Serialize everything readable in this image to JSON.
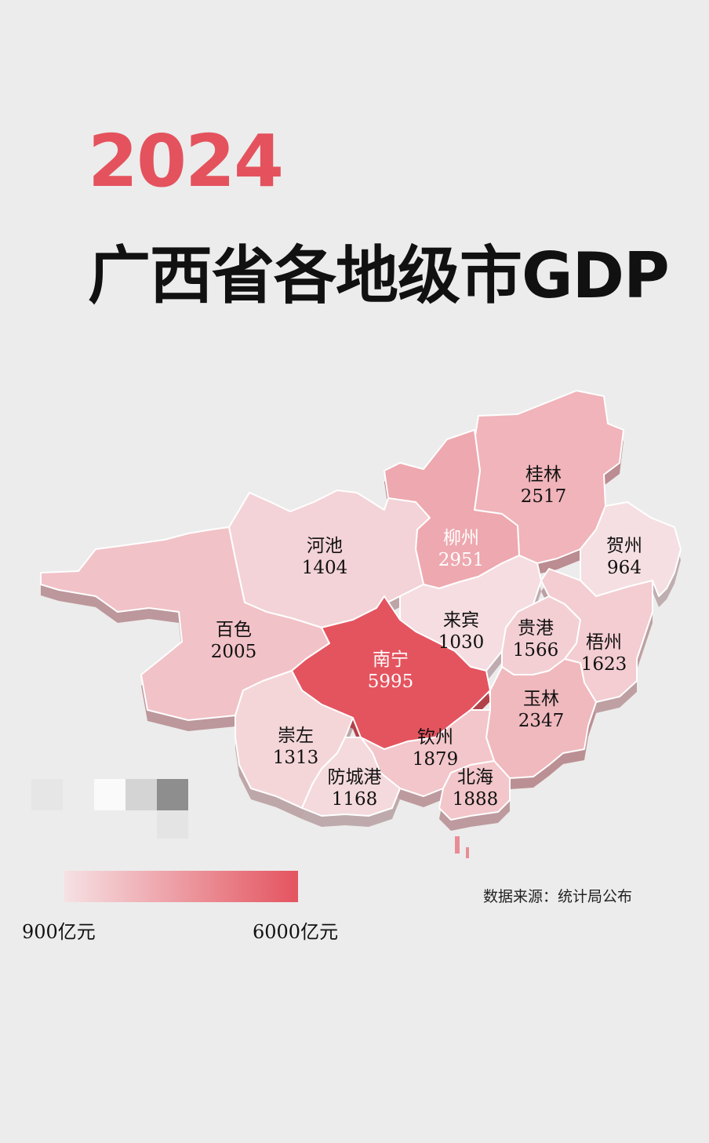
{
  "header": {
    "year": "2024",
    "title": "广西省各地级市GDP"
  },
  "colors": {
    "low": "#f5e1e4",
    "high": "#e4545f",
    "year": "#e4525d"
  },
  "legend": {
    "min_value": 900,
    "max_value": 6000,
    "min_label": "900亿元",
    "max_label": "6000亿元"
  },
  "source": "数据来源：统计局公布",
  "chart_data": {
    "type": "map",
    "unit": "亿元",
    "regions": [
      {
        "name": "桂林",
        "value": 2517
      },
      {
        "name": "柳州",
        "value": 2951
      },
      {
        "name": "河池",
        "value": 1404
      },
      {
        "name": "贺州",
        "value": 964
      },
      {
        "name": "百色",
        "value": 2005
      },
      {
        "name": "来宾",
        "value": 1030
      },
      {
        "name": "贵港",
        "value": 1566
      },
      {
        "name": "梧州",
        "value": 1623
      },
      {
        "name": "南宁",
        "value": 5995
      },
      {
        "name": "玉林",
        "value": 2347
      },
      {
        "name": "崇左",
        "value": 1313
      },
      {
        "name": "钦州",
        "value": 1879
      },
      {
        "name": "防城港",
        "value": 1168
      },
      {
        "name": "北海",
        "value": 1888
      }
    ]
  }
}
